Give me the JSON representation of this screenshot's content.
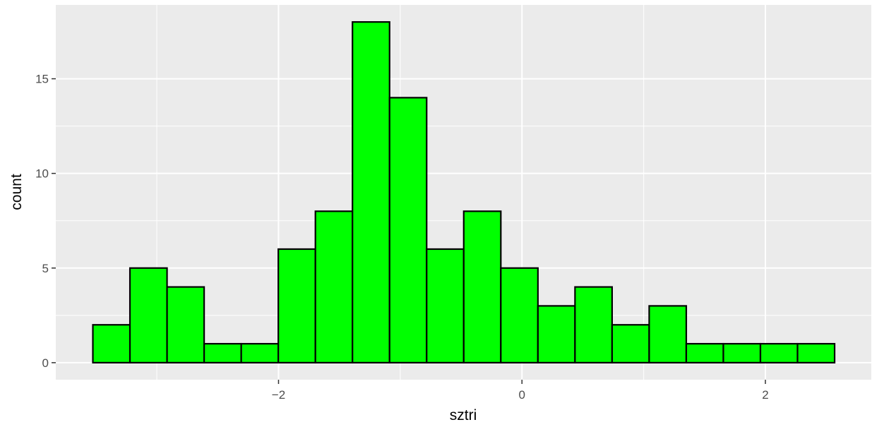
{
  "chart_data": {
    "type": "bar",
    "xlabel": "sztri",
    "ylabel": "count",
    "bin_width": 0.3047,
    "bin_starts": [
      -3.5253,
      -3.2206,
      -2.9159,
      -2.6112,
      -2.3065,
      -2.0018,
      -1.6971,
      -1.3924,
      -1.0877,
      -0.783,
      -0.4783,
      -0.1736,
      0.1311,
      0.4358,
      0.7405,
      1.0452,
      1.3499,
      1.6546,
      1.9593,
      2.264
    ],
    "values": [
      2,
      5,
      4,
      1,
      1,
      6,
      8,
      18,
      14,
      6,
      8,
      5,
      3,
      4,
      2,
      3,
      1,
      1,
      1,
      1
    ],
    "xlim": [
      -3.83,
      2.87
    ],
    "ylim": [
      -0.9,
      18.9
    ],
    "x_ticks": [
      -2,
      0,
      2
    ],
    "x_tick_labels": [
      "−2",
      "0",
      "2"
    ],
    "y_ticks": [
      0,
      5,
      10,
      15
    ],
    "y_tick_labels": [
      "0",
      "5",
      "10",
      "15"
    ],
    "grid": true,
    "colors": {
      "panel_background": "#ebebeb",
      "grid_line": "#ffffff",
      "bar_fill": "#00ff00",
      "bar_stroke": "#000000",
      "tick_label": "#4d4d4d",
      "axis_title": "#000000"
    }
  }
}
